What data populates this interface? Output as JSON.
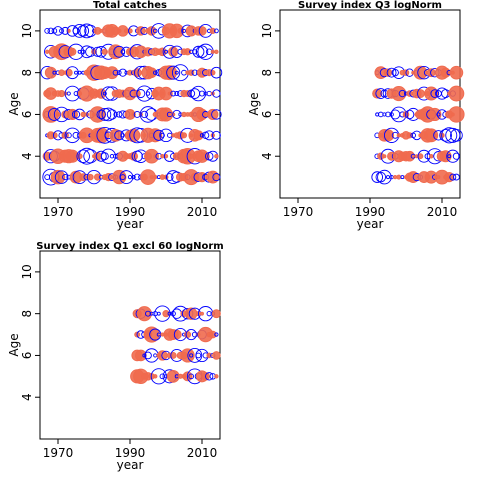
{
  "chart_data": [
    {
      "type": "scatter",
      "title": "Total catches",
      "xlabel": "year",
      "ylabel": "Age",
      "xlim": [
        1965,
        2015
      ],
      "ylim": [
        2,
        11
      ],
      "xticks": [
        "1970",
        "1990",
        "2010"
      ],
      "yticks": [
        "4",
        "6",
        "8",
        "10"
      ],
      "legend": "none",
      "colors": {
        "positive": "#f06a4e",
        "negative": "#0000ff"
      },
      "x_start": 1967,
      "x_end": 2014,
      "ages": [
        3,
        4,
        5,
        6,
        7,
        8,
        9,
        10
      ],
      "grid": false
    },
    {
      "type": "scatter",
      "title": "Survey index Q3 logNorm",
      "xlabel": "year",
      "ylabel": "Age",
      "xlim": [
        1965,
        2015
      ],
      "ylim": [
        2,
        11
      ],
      "xticks": [
        "1970",
        "1990",
        "2010"
      ],
      "yticks": [
        "4",
        "6",
        "8",
        "10"
      ],
      "legend": "none",
      "colors": {
        "positive": "#f06a4e",
        "negative": "#0000ff"
      },
      "x_start": 1992,
      "x_end": 2014,
      "ages": [
        3,
        4,
        5,
        6,
        7,
        8
      ],
      "grid": false
    },
    {
      "type": "scatter",
      "title": "Survey index Q1 excl 60 logNorm",
      "xlabel": "year",
      "ylabel": "Age",
      "xlim": [
        1965,
        2015
      ],
      "ylim": [
        2,
        11
      ],
      "xticks": [
        "1970",
        "1990",
        "2010"
      ],
      "yticks": [
        "4",
        "6",
        "8",
        "10"
      ],
      "legend": "none",
      "colors": {
        "positive": "#f06a4e",
        "negative": "#0000ff"
      },
      "x_start": 1992,
      "x_end": 2014,
      "ages": [
        5,
        6,
        7,
        8
      ],
      "grid": false
    }
  ]
}
